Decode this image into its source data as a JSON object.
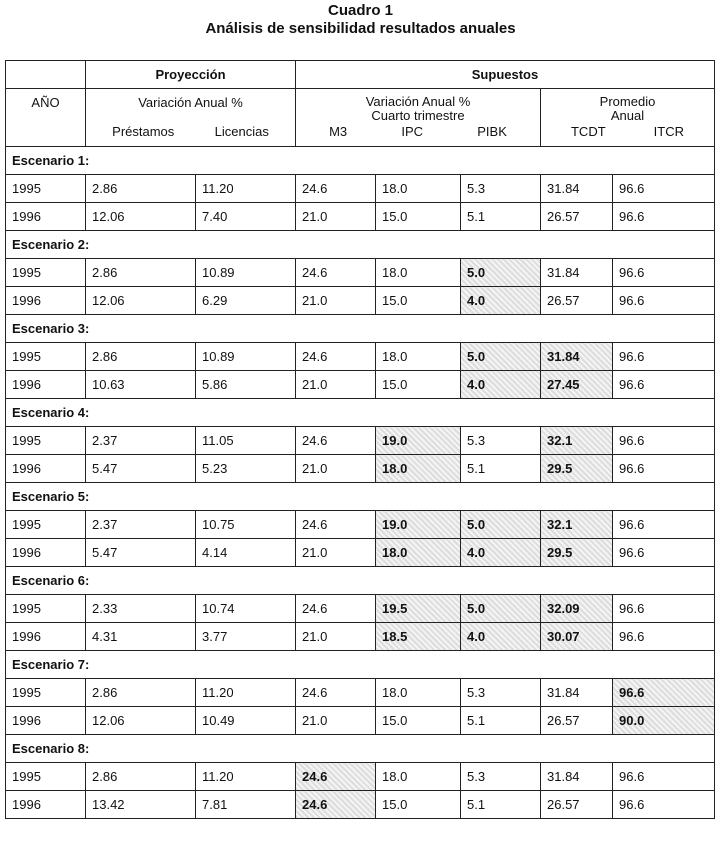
{
  "title": {
    "line1": "Cuadro 1",
    "line2": "Análisis de sensibilidad resultados anuales"
  },
  "header": {
    "proyeccion": "Proyección",
    "supuestos": "Supuestos",
    "ano": "AÑO",
    "var_anual": "Variación Anual %",
    "var_anual_sup": "Variación Anual %",
    "cuarto": "Cuarto trimestre",
    "promedio": "Promedio",
    "anual": "Anual",
    "cols": [
      "Préstamos",
      "Licencias",
      "M3",
      "IPC",
      "PIBK",
      "TCDT",
      "ITCR"
    ]
  },
  "highlight_color": "#dddddd",
  "scenarios": [
    {
      "label": "Escenario 1:",
      "rows": [
        {
          "year": "1995",
          "values": [
            "2.86",
            "11.20",
            "24.6",
            "18.0",
            "5.3",
            "31.84",
            "96.6"
          ],
          "hl": []
        },
        {
          "year": "1996",
          "values": [
            "12.06",
            "7.40",
            "21.0",
            "15.0",
            "5.1",
            "26.57",
            "96.6"
          ],
          "hl": []
        }
      ]
    },
    {
      "label": "Escenario 2:",
      "rows": [
        {
          "year": "1995",
          "values": [
            "2.86",
            "10.89",
            "24.6",
            "18.0",
            "5.0",
            "31.84",
            "96.6"
          ],
          "hl": [
            4
          ]
        },
        {
          "year": "1996",
          "values": [
            "12.06",
            "6.29",
            "21.0",
            "15.0",
            "4.0",
            "26.57",
            "96.6"
          ],
          "hl": [
            4
          ]
        }
      ]
    },
    {
      "label": "Escenario 3:",
      "rows": [
        {
          "year": "1995",
          "values": [
            "2.86",
            "10.89",
            "24.6",
            "18.0",
            "5.0",
            "31.84",
            "96.6"
          ],
          "hl": [
            4,
            5
          ]
        },
        {
          "year": "1996",
          "values": [
            "10.63",
            "5.86",
            "21.0",
            "15.0",
            "4.0",
            "27.45",
            "96.6"
          ],
          "hl": [
            4,
            5
          ]
        }
      ]
    },
    {
      "label": "Escenario 4:",
      "rows": [
        {
          "year": "1995",
          "values": [
            "2.37",
            "11.05",
            "24.6",
            "19.0",
            "5.3",
            "32.1",
            "96.6"
          ],
          "hl": [
            3,
            5
          ]
        },
        {
          "year": "1996",
          "values": [
            "5.47",
            "5.23",
            "21.0",
            "18.0",
            "5.1",
            "29.5",
            "96.6"
          ],
          "hl": [
            3,
            5
          ]
        }
      ]
    },
    {
      "label": "Escenario 5:",
      "rows": [
        {
          "year": "1995",
          "values": [
            "2.37",
            "10.75",
            "24.6",
            "19.0",
            "5.0",
            "32.1",
            "96.6"
          ],
          "hl": [
            3,
            4,
            5
          ]
        },
        {
          "year": "1996",
          "values": [
            "5.47",
            "4.14",
            "21.0",
            "18.0",
            "4.0",
            "29.5",
            "96.6"
          ],
          "hl": [
            3,
            4,
            5
          ]
        }
      ]
    },
    {
      "label": "Escenario 6:",
      "rows": [
        {
          "year": "1995",
          "values": [
            "2.33",
            "10.74",
            "24.6",
            "19.5",
            "5.0",
            "32.09",
            "96.6"
          ],
          "hl": [
            3,
            4,
            5
          ]
        },
        {
          "year": "1996",
          "values": [
            "4.31",
            "3.77",
            "21.0",
            "18.5",
            "4.0",
            "30.07",
            "96.6"
          ],
          "hl": [
            3,
            4,
            5
          ]
        }
      ]
    },
    {
      "label": "Escenario 7:",
      "rows": [
        {
          "year": "1995",
          "values": [
            "2.86",
            "11.20",
            "24.6",
            "18.0",
            "5.3",
            "31.84",
            "96.6"
          ],
          "hl": [
            6
          ]
        },
        {
          "year": "1996",
          "values": [
            "12.06",
            "10.49",
            "21.0",
            "15.0",
            "5.1",
            "26.57",
            "90.0"
          ],
          "hl": [
            6
          ]
        }
      ]
    },
    {
      "label": "Escenario 8:",
      "rows": [
        {
          "year": "1995",
          "values": [
            "2.86",
            "11.20",
            "24.6",
            "18.0",
            "5.3",
            "31.84",
            "96.6"
          ],
          "hl": [
            2
          ]
        },
        {
          "year": "1996",
          "values": [
            "13.42",
            "7.81",
            "24.6",
            "15.0",
            "5.1",
            "26.57",
            "96.6"
          ],
          "hl": [
            2
          ]
        }
      ]
    }
  ]
}
